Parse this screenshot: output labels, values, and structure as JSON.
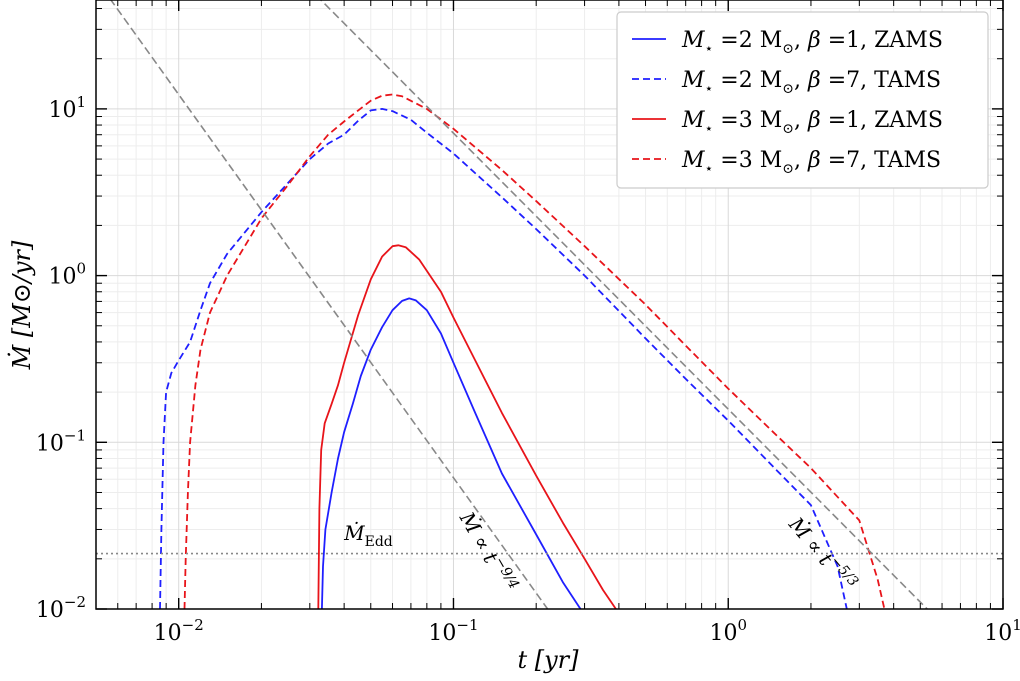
{
  "chart_data": {
    "type": "line",
    "xscale": "log",
    "yscale": "log",
    "xlim": [
      0.005,
      10
    ],
    "ylim": [
      0.01,
      45
    ],
    "xlabel": "t  [yr]",
    "ylabel": "Ṁ  [M⊙/yr]",
    "x_ticks": [
      {
        "value": 0.01,
        "base": "10",
        "exp": "−2"
      },
      {
        "value": 0.1,
        "base": "10",
        "exp": "−1"
      },
      {
        "value": 1,
        "base": "10",
        "exp": "0"
      },
      {
        "value": 10,
        "base": "10",
        "exp": "1"
      }
    ],
    "y_ticks": [
      {
        "value": 0.01,
        "base": "10",
        "exp": "−2"
      },
      {
        "value": 0.1,
        "base": "10",
        "exp": "−1"
      },
      {
        "value": 1,
        "base": "10",
        "exp": "0"
      },
      {
        "value": 10,
        "base": "10",
        "exp": "1"
      }
    ],
    "grid": true,
    "legend_position": "top-right",
    "series": [
      {
        "name": "M⋆ =2 M⊙, β =1, ZAMS",
        "legend_label": {
          "m": "M",
          "star": "⋆",
          "mass": " =2 M",
          "sun": "⊙",
          "sep": ", ",
          "beta": "β",
          "rest": " =1, ZAMS"
        },
        "color": "#1f1fff",
        "style": "solid",
        "points": [
          [
            0.0332,
            0.01
          ],
          [
            0.0335,
            0.018
          ],
          [
            0.0342,
            0.03
          ],
          [
            0.036,
            0.05
          ],
          [
            0.038,
            0.08
          ],
          [
            0.04,
            0.115
          ],
          [
            0.043,
            0.17
          ],
          [
            0.046,
            0.25
          ],
          [
            0.05,
            0.36
          ],
          [
            0.055,
            0.49
          ],
          [
            0.06,
            0.62
          ],
          [
            0.065,
            0.705
          ],
          [
            0.069,
            0.73
          ],
          [
            0.073,
            0.71
          ],
          [
            0.08,
            0.62
          ],
          [
            0.09,
            0.45
          ],
          [
            0.1,
            0.3
          ],
          [
            0.12,
            0.15
          ],
          [
            0.15,
            0.065
          ],
          [
            0.2,
            0.028
          ],
          [
            0.25,
            0.0145
          ],
          [
            0.29,
            0.01
          ]
        ]
      },
      {
        "name": "M⋆ =2 M⊙, β =7, TAMS",
        "legend_label": {
          "m": "M",
          "star": "⋆",
          "mass": " =2 M",
          "sun": "⊙",
          "sep": ", ",
          "beta": "β",
          "rest": " =7, TAMS"
        },
        "color": "#1f1fff",
        "style": "dashed",
        "points": [
          [
            0.00855,
            0.01
          ],
          [
            0.00865,
            0.03
          ],
          [
            0.0088,
            0.1
          ],
          [
            0.009,
            0.2
          ],
          [
            0.0094,
            0.26
          ],
          [
            0.01,
            0.31
          ],
          [
            0.011,
            0.4
          ],
          [
            0.012,
            0.62
          ],
          [
            0.013,
            0.9
          ],
          [
            0.015,
            1.35
          ],
          [
            0.02,
            2.4
          ],
          [
            0.025,
            3.6
          ],
          [
            0.03,
            5.0
          ],
          [
            0.035,
            6.2
          ],
          [
            0.04,
            7.0
          ],
          [
            0.045,
            8.5
          ],
          [
            0.05,
            9.8
          ],
          [
            0.055,
            10.0
          ],
          [
            0.06,
            9.7
          ],
          [
            0.07,
            8.6
          ],
          [
            0.08,
            7.2
          ],
          [
            0.1,
            5.4
          ],
          [
            0.15,
            2.95
          ],
          [
            0.2,
            1.9
          ],
          [
            0.3,
            1.0
          ],
          [
            0.5,
            0.42
          ],
          [
            0.7,
            0.24
          ],
          [
            1.0,
            0.135
          ],
          [
            1.5,
            0.068
          ],
          [
            2.0,
            0.042
          ],
          [
            2.5,
            0.018
          ],
          [
            2.7,
            0.01
          ]
        ]
      },
      {
        "name": "M⋆ =3 M⊙, β =1, ZAMS",
        "legend_label": {
          "m": "M",
          "star": "⋆",
          "mass": " =3 M",
          "sun": "⊙",
          "sep": ", ",
          "beta": "β",
          "rest": " =1, ZAMS"
        },
        "color": "#e8141a",
        "style": "solid",
        "points": [
          [
            0.0322,
            0.01
          ],
          [
            0.0325,
            0.04
          ],
          [
            0.033,
            0.09
          ],
          [
            0.034,
            0.13
          ],
          [
            0.036,
            0.17
          ],
          [
            0.038,
            0.22
          ],
          [
            0.04,
            0.3
          ],
          [
            0.045,
            0.58
          ],
          [
            0.05,
            0.95
          ],
          [
            0.055,
            1.3
          ],
          [
            0.06,
            1.5
          ],
          [
            0.063,
            1.52
          ],
          [
            0.067,
            1.48
          ],
          [
            0.075,
            1.25
          ],
          [
            0.09,
            0.8
          ],
          [
            0.1,
            0.56
          ],
          [
            0.12,
            0.31
          ],
          [
            0.15,
            0.15
          ],
          [
            0.2,
            0.063
          ],
          [
            0.25,
            0.033
          ],
          [
            0.3,
            0.02
          ],
          [
            0.35,
            0.013
          ],
          [
            0.39,
            0.01
          ]
        ]
      },
      {
        "name": "M⋆ =3 M⊙, β =7, TAMS",
        "legend_label": {
          "m": "M",
          "star": "⋆",
          "mass": " =3 M",
          "sun": "⊙",
          "sep": ", ",
          "beta": "β",
          "rest": " =7, TAMS"
        },
        "color": "#e8141a",
        "style": "dashed",
        "points": [
          [
            0.0105,
            0.01
          ],
          [
            0.0106,
            0.02
          ],
          [
            0.0108,
            0.05
          ],
          [
            0.011,
            0.1
          ],
          [
            0.0115,
            0.22
          ],
          [
            0.012,
            0.36
          ],
          [
            0.013,
            0.6
          ],
          [
            0.015,
            1.0
          ],
          [
            0.02,
            2.2
          ],
          [
            0.025,
            3.5
          ],
          [
            0.03,
            5.2
          ],
          [
            0.035,
            7.0
          ],
          [
            0.04,
            8.4
          ],
          [
            0.045,
            9.8
          ],
          [
            0.05,
            11.2
          ],
          [
            0.055,
            12.0
          ],
          [
            0.06,
            12.2
          ],
          [
            0.065,
            11.9
          ],
          [
            0.08,
            10.0
          ],
          [
            0.1,
            7.6
          ],
          [
            0.15,
            4.3
          ],
          [
            0.2,
            2.8
          ],
          [
            0.3,
            1.5
          ],
          [
            0.5,
            0.67
          ],
          [
            0.7,
            0.38
          ],
          [
            1.0,
            0.21
          ],
          [
            1.5,
            0.11
          ],
          [
            2.0,
            0.07
          ],
          [
            3.0,
            0.034
          ],
          [
            3.5,
            0.015
          ],
          [
            3.7,
            0.01
          ]
        ]
      },
      {
        "name": "Ṁ ∝ t^−9/4",
        "color": "#888888",
        "style": "dashed-reference",
        "points": [
          [
            0.005,
            60
          ],
          [
            0.22,
            0.01
          ]
        ]
      },
      {
        "name": "Ṁ ∝ t^−5/3",
        "color": "#888888",
        "style": "dashed-reference",
        "points": [
          [
            0.005,
            1020
          ],
          [
            5.3,
            0.01
          ]
        ]
      },
      {
        "name": "Ṁ_Edd",
        "color": "#888888",
        "style": "dotted",
        "points": [
          [
            0.005,
            0.0215
          ],
          [
            10,
            0.0215
          ]
        ]
      }
    ],
    "annotations": [
      {
        "id": "edd",
        "label": {
          "main": "Ṁ",
          "sub": "Edd"
        },
        "x": 0.04,
        "y": 0.026
      },
      {
        "id": "slope94",
        "label": {
          "main": "Ṁ ∝ t",
          "sup": "−9/4"
        },
        "x": 0.105,
        "y": 0.0355
      },
      {
        "id": "slope53",
        "label": {
          "main": "Ṁ ∝ t",
          "sup": "−5/3"
        },
        "x": 1.65,
        "y": 0.032
      }
    ]
  }
}
